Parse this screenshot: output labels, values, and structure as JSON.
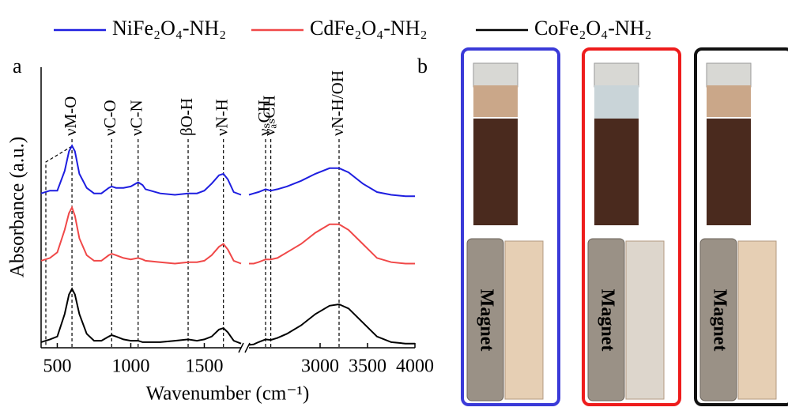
{
  "chart_data": {
    "type": "line",
    "panel_label": "a",
    "xlabel": "Wavenumber (cm⁻¹)",
    "ylabel": "Absorbance (a.u.)",
    "xlim": [
      390,
      4000
    ],
    "x_break": [
      1750,
      2250
    ],
    "ylim": [
      0,
      1
    ],
    "xticks": [
      500,
      1000,
      1500,
      3000,
      3500,
      4000
    ],
    "x": [
      390,
      450,
      500,
      550,
      580,
      600,
      620,
      650,
      700,
      750,
      800,
      850,
      870,
      900,
      950,
      1000,
      1050,
      1080,
      1100,
      1200,
      1300,
      1390,
      1450,
      1500,
      1550,
      1600,
      1630,
      1660,
      1700,
      1750,
      2000,
      2250,
      2300,
      2350,
      2425,
      2480,
      2550,
      2650,
      2800,
      2950,
      3100,
      3200,
      3300,
      3450,
      3600,
      3750,
      3900,
      4000
    ],
    "series": [
      {
        "name": "NiFe₂O₄-NH₂",
        "color": "#1e1ee0",
        "values": [
          0.55,
          0.56,
          0.56,
          0.63,
          0.7,
          0.72,
          0.7,
          0.62,
          0.57,
          0.55,
          0.55,
          0.57,
          0.575,
          0.57,
          0.57,
          0.575,
          0.59,
          0.58,
          0.565,
          0.55,
          0.545,
          0.55,
          0.55,
          0.56,
          0.585,
          0.615,
          0.62,
          0.6,
          0.555,
          0.545,
          null,
          0.545,
          0.55,
          0.555,
          0.565,
          0.56,
          0.565,
          0.575,
          0.595,
          0.62,
          0.64,
          0.64,
          0.625,
          0.585,
          0.555,
          0.545,
          0.54,
          0.54
        ]
      },
      {
        "name": "CdFe₂O₄-NH₂",
        "color": "#f04848",
        "values": [
          0.31,
          0.32,
          0.34,
          0.42,
          0.48,
          0.5,
          0.47,
          0.39,
          0.33,
          0.31,
          0.31,
          0.33,
          0.335,
          0.33,
          0.32,
          0.315,
          0.32,
          0.315,
          0.31,
          0.305,
          0.3,
          0.305,
          0.305,
          0.31,
          0.33,
          0.36,
          0.37,
          0.35,
          0.31,
          0.3,
          null,
          0.3,
          0.3,
          0.305,
          0.315,
          0.315,
          0.32,
          0.34,
          0.37,
          0.41,
          0.44,
          0.44,
          0.42,
          0.37,
          0.32,
          0.305,
          0.3,
          0.3
        ]
      },
      {
        "name": "CoFe₂O₄-NH₂",
        "color": "#000000",
        "values": [
          0.02,
          0.03,
          0.04,
          0.12,
          0.19,
          0.21,
          0.19,
          0.12,
          0.05,
          0.025,
          0.025,
          0.04,
          0.045,
          0.04,
          0.03,
          0.025,
          0.025,
          0.02,
          0.02,
          0.02,
          0.025,
          0.03,
          0.025,
          0.03,
          0.04,
          0.065,
          0.07,
          0.055,
          0.025,
          0.015,
          null,
          0.01,
          0.012,
          0.02,
          0.03,
          0.028,
          0.035,
          0.05,
          0.08,
          0.12,
          0.15,
          0.155,
          0.14,
          0.09,
          0.04,
          0.02,
          0.015,
          0.015
        ]
      }
    ],
    "annotations": [
      {
        "text": "νM-O",
        "x": 600
      },
      {
        "text": "νC-O",
        "x": 870
      },
      {
        "text": "νC-N",
        "x": 1050
      },
      {
        "text": "βO-H",
        "x": 1390
      },
      {
        "text": "νN-H",
        "x": 1630
      },
      {
        "text": "νₛCH",
        "x": 2425
      },
      {
        "text": "νₐₛCH",
        "x": 2480
      },
      {
        "text": "νN-H/OH",
        "x": 3200
      }
    ]
  },
  "panel_b": {
    "label": "b",
    "magnet_label": "Magnet"
  }
}
